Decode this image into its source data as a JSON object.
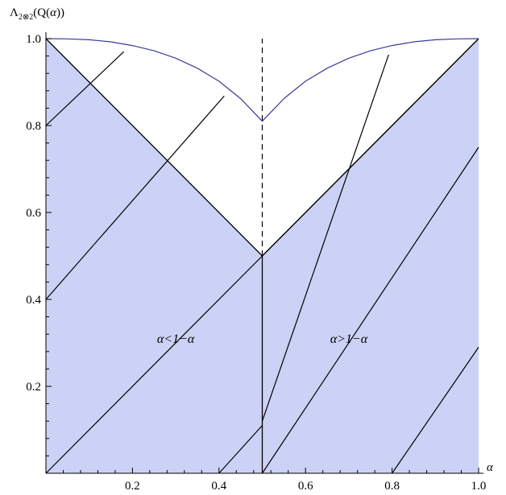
{
  "chart_data": {
    "type": "line",
    "title": "",
    "xlabel": "α",
    "ylabel": "Λ2⊗2(Q(α))",
    "xlim": [
      0,
      1
    ],
    "ylim": [
      0,
      1
    ],
    "x_ticks": [
      {
        "value": 0.2,
        "label": "0.2"
      },
      {
        "value": 0.4,
        "label": "0.4"
      },
      {
        "value": 0.6,
        "label": "0.6"
      },
      {
        "value": 0.8,
        "label": "0.8"
      },
      {
        "value": 1.0,
        "label": "1.0"
      }
    ],
    "y_ticks": [
      {
        "value": 0.2,
        "label": "0.2"
      },
      {
        "value": 0.4,
        "label": "0.4"
      },
      {
        "value": 0.6,
        "label": "0.6"
      },
      {
        "value": 0.8,
        "label": "0.8"
      },
      {
        "value": 1.0,
        "label": "1.0"
      }
    ],
    "colors": {
      "region_fill": "#ccd2f5",
      "upper_curve": "#3a3a9a",
      "lines": "#000000"
    },
    "shaded_region": {
      "name": "",
      "points": [
        [
          0,
          0
        ],
        [
          0,
          1.0
        ],
        [
          0.5,
          0.5
        ],
        [
          1.0,
          1.0
        ],
        [
          1.0,
          0
        ]
      ]
    },
    "upper_curve": {
      "points": [
        [
          0,
          1.0
        ],
        [
          0.05,
          0.9995
        ],
        [
          0.1,
          0.9975
        ],
        [
          0.15,
          0.9925
        ],
        [
          0.2,
          0.984
        ],
        [
          0.25,
          0.972
        ],
        [
          0.3,
          0.955
        ],
        [
          0.35,
          0.932
        ],
        [
          0.4,
          0.902
        ],
        [
          0.45,
          0.862
        ],
        [
          0.5,
          0.81
        ],
        [
          0.55,
          0.862
        ],
        [
          0.6,
          0.902
        ],
        [
          0.65,
          0.932
        ],
        [
          0.7,
          0.955
        ],
        [
          0.75,
          0.972
        ],
        [
          0.8,
          0.984
        ],
        [
          0.85,
          0.9925
        ],
        [
          0.9,
          0.9975
        ],
        [
          0.95,
          0.9995
        ],
        [
          1.0,
          1.0
        ]
      ]
    },
    "boundary_lines": [
      {
        "points": [
          [
            0,
            1.0
          ],
          [
            0.5,
            0.5
          ]
        ]
      },
      {
        "points": [
          [
            0.5,
            0.5
          ],
          [
            1.0,
            1.0
          ]
        ]
      },
      {
        "points": [
          [
            0.5,
            0
          ],
          [
            0.5,
            0.5
          ]
        ]
      }
    ],
    "dashed_line": {
      "x": 0.5,
      "y_range": [
        0.5,
        1.0
      ]
    },
    "diagonal_lines": [
      {
        "points": [
          [
            0,
            0.8
          ],
          [
            0.18,
            0.97
          ]
        ]
      },
      {
        "points": [
          [
            0,
            0.4
          ],
          [
            0.412,
            0.868
          ]
        ]
      },
      {
        "points": [
          [
            0,
            0
          ],
          [
            0.5,
            0.5
          ]
        ]
      },
      {
        "points": [
          [
            0.4,
            0
          ],
          [
            0.5,
            0.11
          ]
        ]
      },
      {
        "points": [
          [
            0.5,
            0.12
          ],
          [
            0.792,
            0.963
          ]
        ]
      },
      {
        "points": [
          [
            0.5,
            0.5
          ],
          [
            1.0,
            1.0
          ]
        ]
      },
      {
        "points": [
          [
            0.8,
            0
          ],
          [
            1.0,
            0.29
          ]
        ]
      },
      {
        "points": [
          [
            0.5,
            0.0
          ],
          [
            0.5,
            0.0
          ]
        ]
      }
    ],
    "extra_line": {
      "points": [
        [
          0.5,
          0
        ],
        [
          1.0,
          0.75
        ]
      ]
    },
    "annotations": [
      {
        "text": "α<1−α",
        "x": 0.3,
        "y": 0.3
      },
      {
        "text": "α>1−α",
        "x": 0.7,
        "y": 0.3
      }
    ]
  }
}
